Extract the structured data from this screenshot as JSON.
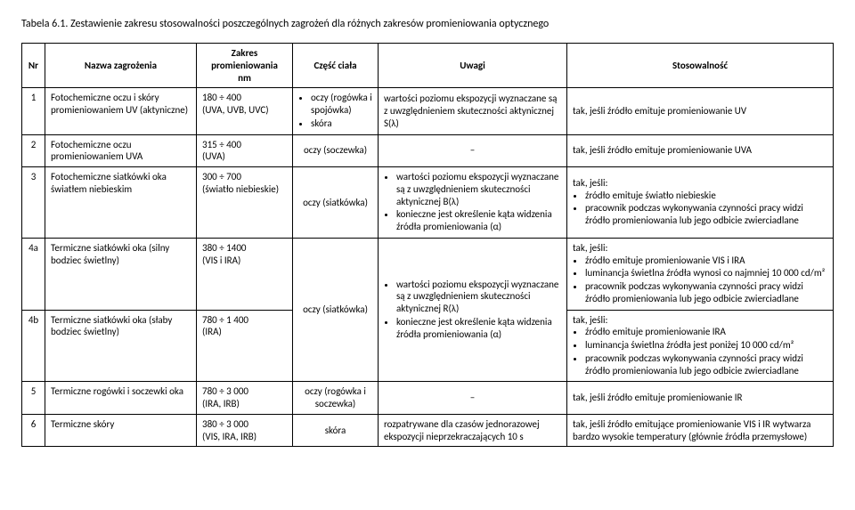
{
  "caption": "Tabela 6.1. Zestawienie zakresu stosowalności poszczególnych zagrożeń dla różnych zakresów promieniowania optycznego",
  "headers": {
    "nr": "Nr",
    "name": "Nazwa zagrożenia",
    "zakres_l1": "Zakres",
    "zakres_l2": "promieniowania",
    "zakres_l3": "nm",
    "body": "Część ciała",
    "uwagi": "Uwagi",
    "stos": "Stosowalność"
  },
  "rows": {
    "r1": {
      "nr": "1",
      "name": "Fotochemiczne oczu i skóry promieniowaniem UV (aktyniczne)",
      "zakres_a": "180 ÷ 400",
      "zakres_b": "(UVA, UVB, UVC)",
      "body_b1": "oczy (rogówka i spojówka)",
      "body_b2": "skóra",
      "uwagi": "wartości poziomu ekspozycji wyznaczane są z uwzględnieniem skuteczności aktynicznej S(λ)",
      "stos": "tak, jeśli źródło emituje promieniowanie UV"
    },
    "r2": {
      "nr": "2",
      "name": "Fotochemiczne oczu promieniowaniem UVA",
      "zakres_a": "315 ÷ 400",
      "zakres_b": "(UVA)",
      "body": "oczy (soczewka)",
      "uwagi": "–",
      "stos": "tak, jeśli źródło emituje promieniowanie UVA"
    },
    "r3": {
      "nr": "3",
      "name": "Fotochemiczne siatkówki oka światłem niebieskim",
      "zakres_a": "300 ÷ 700",
      "zakres_b": "(światło niebieskie)",
      "body": "oczy (siatkówka)",
      "uwagi_b1": "wartości poziomu ekspozycji wyznaczane są z uwzględnieniem skuteczności aktynicznej B(λ)",
      "uwagi_b2": "konieczne jest określenie kąta widzenia źródła promieniowania (α)",
      "stos_head": "tak, jeśli:",
      "stos_b1": "źródło emituje światło niebieskie",
      "stos_b2": "pracownik podczas wykonywania czynności pracy widzi źródło promieniowania lub jego odbicie zwierciadlane"
    },
    "r4a": {
      "nr": "4a",
      "name": "Termiczne siatkówki oka (silny bodziec świetlny)",
      "zakres_a": "380 ÷ 1400",
      "zakres_b": "(VIS i IRA)",
      "stos_head": "tak, jeśli:",
      "stos_b1": "źródło emituje promieniowanie VIS i IRA",
      "stos_b2": "luminancja świetlna źródła wynosi co najmniej 10 000 cd/m²",
      "stos_b3": "pracownik podczas wykonywania czynności pracy widzi źródło promieniowania lub jego odbicie zwierciadlane"
    },
    "r4_shared": {
      "body": "oczy (siatkówka)",
      "uwagi_b1": "wartości poziomu ekspozycji wyznaczane są z uwzględnieniem skuteczności aktynicznej R(λ)",
      "uwagi_b2": "konieczne jest określenie kąta widzenia źródła promieniowania (α)"
    },
    "r4b": {
      "nr": "4b",
      "name": "Termiczne siatkówki oka (słaby bodziec świetlny)",
      "zakres_a": "780 ÷ 1 400",
      "zakres_b": "(IRA)",
      "stos_head": "tak, jeśli:",
      "stos_b1": "źródło emituje promieniowanie IRA",
      "stos_b2": "luminancja świetlna źródła jest poniżej 10 000 cd/m²",
      "stos_b3": "pracownik podczas wykonywania czynności pracy widzi źródło promieniowania lub jego odbicie zwierciadlane"
    },
    "r5": {
      "nr": "5",
      "name": "Termiczne rogówki i soczewki oka",
      "zakres_a": "780 ÷ 3 000",
      "zakres_b": "(IRA, IRB)",
      "body": "oczy (rogówka i soczewka)",
      "uwagi": "–",
      "stos": "tak, jeśli źródło emituje promieniowanie IR"
    },
    "r6": {
      "nr": "6",
      "name": "Termiczne skóry",
      "zakres_a": "380 ÷ 3 000",
      "zakres_b": "(VIS, IRA, IRB)",
      "body": "skóra",
      "uwagi": "rozpatrywane dla czasów jednorazowej ekspozycji nieprzekraczających 10 s",
      "stos": "tak, jeśli źródło emitujące promieniowanie VIS i IR wytwarza bardzo wysokie temperatury (głównie źródła przemysłowe)"
    }
  }
}
